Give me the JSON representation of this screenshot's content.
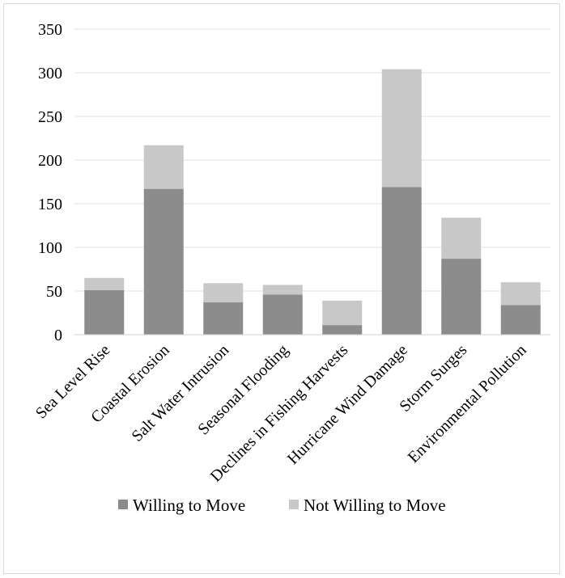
{
  "chart_data": {
    "type": "bar",
    "stacked": true,
    "categories": [
      "Sea Level Rise",
      "Coastal Erosion",
      "Salt Water Intrusion",
      "Seasonal Flooding",
      "Declines in Fishing Harvests",
      "Hurricane Wind Damage",
      "Storm Surges",
      "Environmental Pollution"
    ],
    "series": [
      {
        "name": "Willing to Move",
        "values": [
          51,
          167,
          37,
          46,
          11,
          169,
          87,
          34
        ],
        "color": "#8c8c8c"
      },
      {
        "name": "Not Willing to Move",
        "values": [
          14,
          50,
          22,
          11,
          28,
          135,
          47,
          26
        ],
        "color": "#c8c8c8"
      }
    ],
    "ylim": [
      0,
      350
    ],
    "yticks": [
      0,
      50,
      100,
      150,
      200,
      250,
      300,
      350
    ],
    "grid": true,
    "legend": "bottom"
  }
}
